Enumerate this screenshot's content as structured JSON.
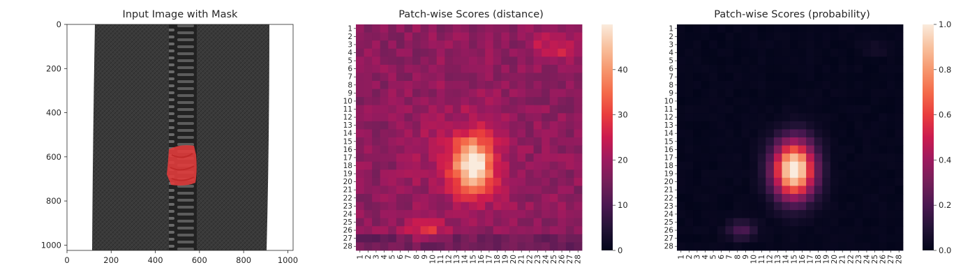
{
  "panels": {
    "image": {
      "title": "Input Image with Mask",
      "xlim": [
        0,
        1024
      ],
      "ylim": [
        1024,
        0
      ],
      "xticks": [
        0,
        200,
        400,
        600,
        800,
        1000
      ],
      "yticks": [
        0,
        200,
        400,
        600,
        800,
        1000
      ],
      "colors": {
        "fabric": "#3a3a3a",
        "teeth": "#1a1a1a",
        "mask": "#e03c3c",
        "background": "#ffffff"
      }
    }
  },
  "chart_data": [
    {
      "type": "image",
      "title": "Input Image with Mask",
      "xlim": [
        0,
        1024
      ],
      "ylim": [
        1024,
        0
      ],
      "xticks": [
        0,
        200,
        400,
        600,
        800,
        1000
      ],
      "yticks": [
        0,
        200,
        400,
        600,
        800,
        1000
      ],
      "mask_region": {
        "x": [
          455,
          585
        ],
        "y": [
          545,
          725
        ]
      }
    },
    {
      "type": "heatmap",
      "title": "Patch-wise Scores (distance)",
      "rows": 28,
      "cols": 28,
      "ticks": [
        "1",
        "2",
        "3",
        "4",
        "5",
        "6",
        "7",
        "8",
        "9",
        "10",
        "11",
        "12",
        "13",
        "14",
        "15",
        "16",
        "17",
        "18",
        "19",
        "20",
        "21",
        "22",
        "23",
        "24",
        "25",
        "26",
        "27",
        "28"
      ],
      "colorbar": {
        "min": 0,
        "max": 50,
        "ticks": [
          "0",
          "10",
          "20",
          "30",
          "40"
        ],
        "tick_values": [
          0,
          10,
          20,
          30,
          40
        ]
      },
      "grid": false,
      "model": {
        "baseline": 18,
        "peak": {
          "row": 18,
          "col": 15,
          "value": 49
        },
        "secondary": {
          "row": 26,
          "col": 9,
          "value": 28
        },
        "upper_right": {
          "row": 3.5,
          "col": 25,
          "value": 27
        }
      }
    },
    {
      "type": "heatmap",
      "title": "Patch-wise Scores (probability)",
      "rows": 28,
      "cols": 28,
      "ticks": [
        "1",
        "2",
        "3",
        "4",
        "5",
        "6",
        "7",
        "8",
        "9",
        "10",
        "11",
        "12",
        "13",
        "14",
        "15",
        "16",
        "17",
        "18",
        "19",
        "20",
        "21",
        "22",
        "23",
        "24",
        "25",
        "26",
        "27",
        "28"
      ],
      "colorbar": {
        "min": 0,
        "max": 1,
        "ticks": [
          "0.0",
          "0.2",
          "0.4",
          "0.6",
          "0.8",
          "1.0"
        ],
        "tick_values": [
          0,
          0.2,
          0.4,
          0.6,
          0.8,
          1.0
        ]
      },
      "grid": false,
      "model": {
        "baseline": 0,
        "peak": {
          "row": 18.5,
          "col": 15,
          "value": 1.0
        },
        "secondary": {
          "row": 26,
          "col": 8.5,
          "value": 0.2
        }
      }
    }
  ]
}
